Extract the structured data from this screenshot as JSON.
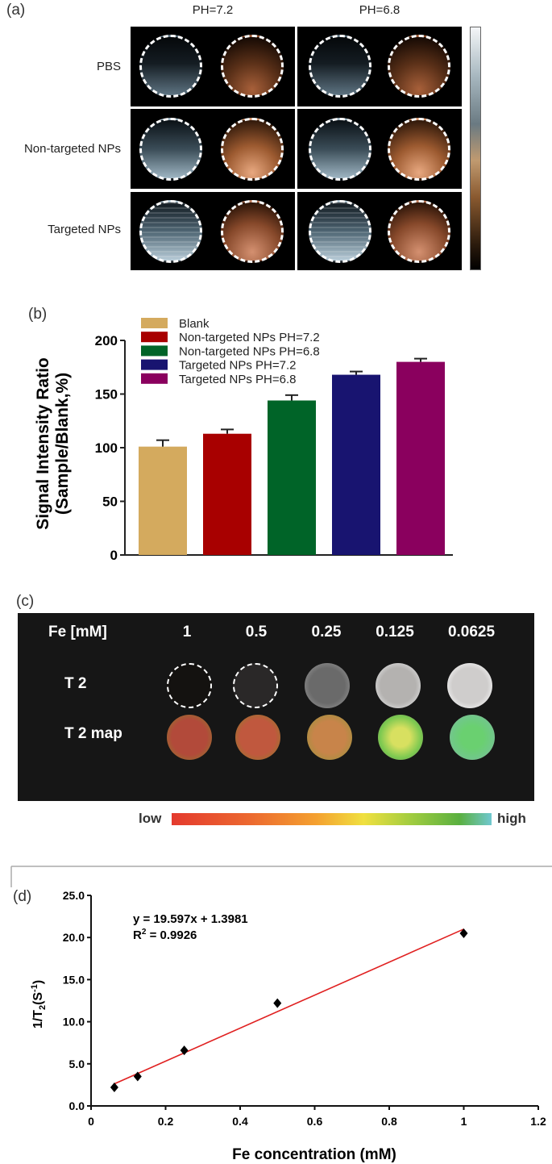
{
  "panel_a": {
    "label": "(a)",
    "columns": [
      "PH=7.2",
      "PH=6.8"
    ],
    "rows": [
      "PBS",
      "Non-targeted NPs",
      "Targeted NPs"
    ]
  },
  "panel_c": {
    "label": "(c)",
    "header_label": "Fe [mM]",
    "concentrations": [
      "1",
      "0.5",
      "0.25",
      "0.125",
      "0.0625"
    ],
    "row_labels": [
      "T 2",
      "T 2 map"
    ],
    "scale_low": "low",
    "scale_high": "high"
  },
  "chart_data": [
    {
      "panel": "(b)",
      "type": "bar",
      "categories": [
        "Blank",
        "Non-targeted NPs PH=7.2",
        "Non-targeted NPs PH=6.8",
        "Targeted NPs PH=7.2",
        "Targeted NPs PH=6.8"
      ],
      "series": [
        {
          "values": [
            101,
            113,
            144,
            168,
            180
          ],
          "errors": [
            6,
            4,
            5,
            3,
            3
          ]
        }
      ],
      "colors": [
        "#d4aa5e",
        "#a80000",
        "#006428",
        "#181470",
        "#8a005e"
      ],
      "legend": [
        "Blank",
        "Non-targeted NPs PH=7.2",
        "Non-targeted NPs PH=6.8",
        "Targeted NPs PH=7.2",
        "Targeted NPs PH=6.8"
      ],
      "legend_position": "top-left",
      "ylabel_line1": "Signal Intensity Ratio",
      "ylabel_line2": "(Sample/Blank,%)",
      "ylim": [
        0,
        200
      ],
      "yticks": [
        "0",
        "50",
        "100",
        "150",
        "200"
      ]
    },
    {
      "panel": "(d)",
      "type": "scatter",
      "x": [
        0.0625,
        0.125,
        0.25,
        0.5,
        1
      ],
      "y": [
        2.2,
        3.5,
        6.6,
        12.2,
        20.5
      ],
      "trendline": {
        "slope": 19.597,
        "intercept": 1.3981,
        "color": "#e02020"
      },
      "equation": "y = 19.597x + 1.3981",
      "r2_label": "R",
      "r2_sup": "2",
      "r2_value": " = 0.9926",
      "xlabel": "Fe concentration (mM)",
      "ylabel_main": "1/T",
      "ylabel_sub": "2",
      "ylabel_unit": "(S",
      "ylabel_sup": "-1",
      "ylabel_end": ")",
      "xlim": [
        0,
        1.2
      ],
      "ylim": [
        0,
        25
      ],
      "xticks": [
        "0",
        "0.2",
        "0.4",
        "0.6",
        "0.8",
        "1",
        "1.2"
      ],
      "yticks": [
        "0.0",
        "5.0",
        "10.0",
        "15.0",
        "20.0",
        "25.0"
      ]
    }
  ]
}
